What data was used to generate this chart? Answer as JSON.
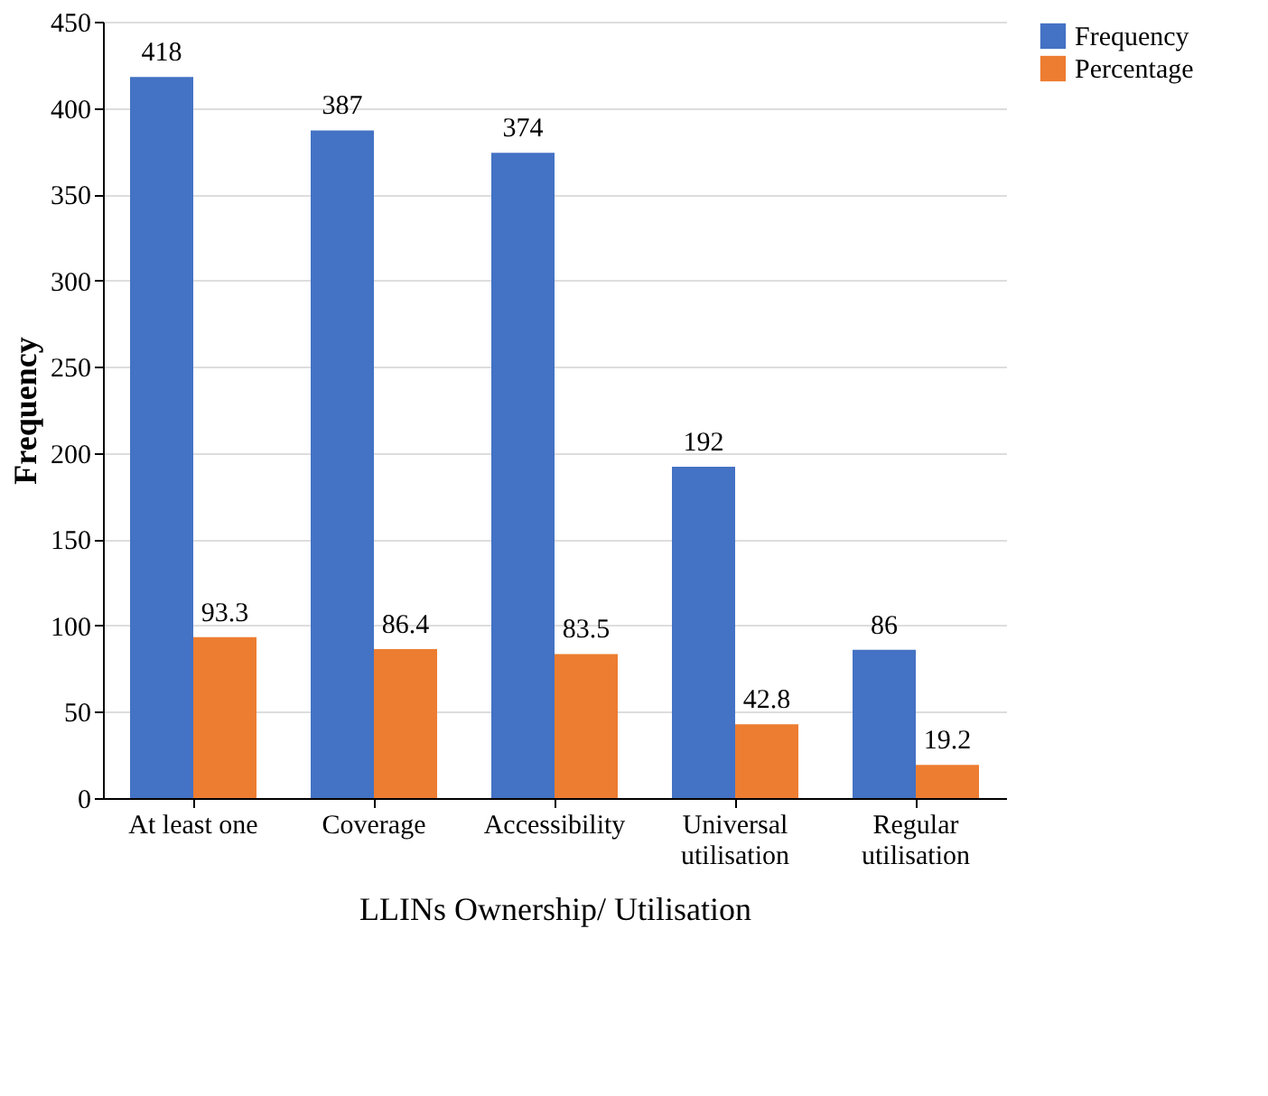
{
  "chart_data": {
    "type": "bar",
    "xlabel": "LLINs Ownership/ Utilisation",
    "ylabel": "Frequency",
    "categories": [
      "At least one",
      "Coverage",
      "Accessibility",
      "Universal utilisation",
      "Regular utilisation"
    ],
    "series": [
      {
        "name": "Frequency",
        "color": "#4472c4",
        "values": [
          418,
          387,
          374,
          192,
          86
        ]
      },
      {
        "name": "Percentage",
        "color": "#ed7d31",
        "values": [
          93.3,
          86.4,
          83.5,
          42.8,
          19.2
        ]
      }
    ],
    "ylim": [
      0,
      450
    ],
    "yticks": [
      0,
      50,
      100,
      150,
      200,
      250,
      300,
      350,
      400,
      450
    ],
    "grid": "y",
    "legend": "right",
    "data_labels": true
  }
}
